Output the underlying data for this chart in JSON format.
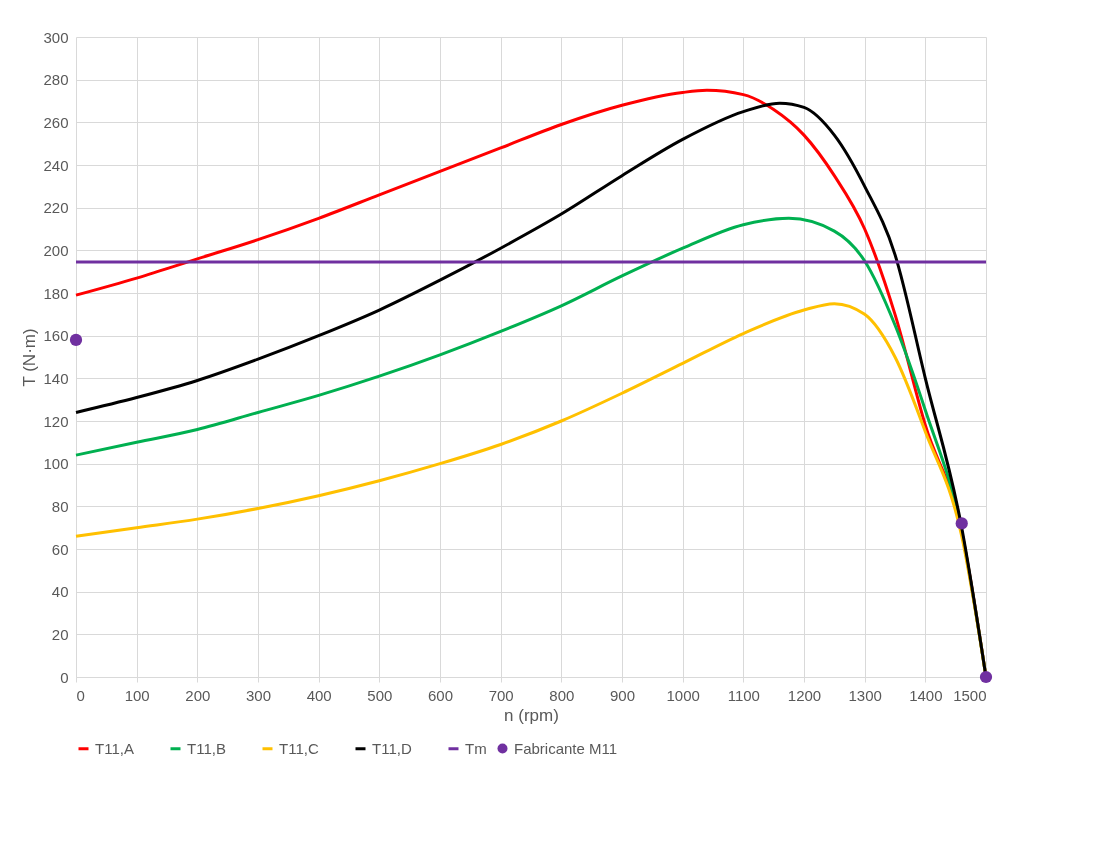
{
  "chart_data": {
    "type": "line",
    "xlabel": "n (rpm)",
    "ylabel": "T (N·m)",
    "xlim": [
      0,
      1500
    ],
    "xticks": [
      0,
      100,
      200,
      300,
      400,
      500,
      600,
      700,
      800,
      900,
      1000,
      1100,
      1200,
      1300,
      1400,
      1500
    ],
    "ylim": [
      0,
      300
    ],
    "yticks": [
      0,
      20,
      40,
      60,
      80,
      100,
      120,
      140,
      160,
      180,
      200,
      220,
      240,
      260,
      280,
      300
    ],
    "grid": true,
    "legend": "bottom",
    "line_style": "solid",
    "series": [
      {
        "name": "T11,A",
        "color": "#ff0000",
        "x": [
          0,
          100,
          200,
          300,
          400,
          500,
          600,
          700,
          800,
          900,
          1000,
          1040,
          1100,
          1150,
          1200,
          1250,
          1300,
          1350,
          1400,
          1460,
          1500
        ],
        "values": [
          179,
          187,
          196,
          205,
          215,
          226,
          237,
          248,
          259,
          268,
          274,
          275,
          273,
          266,
          254,
          235,
          210,
          170,
          118,
          68,
          0
        ]
      },
      {
        "name": "T11,B",
        "color": "#00b050",
        "x": [
          0,
          100,
          200,
          300,
          400,
          500,
          600,
          700,
          800,
          900,
          1000,
          1100,
          1175,
          1250,
          1300,
          1350,
          1400,
          1460,
          1500
        ],
        "values": [
          104,
          110,
          116,
          124,
          132,
          141,
          151,
          162,
          174,
          188,
          201,
          212,
          215,
          209,
          195,
          165,
          125,
          68,
          0
        ]
      },
      {
        "name": "T11,C",
        "color": "#ffc000",
        "x": [
          0,
          100,
          200,
          300,
          400,
          500,
          600,
          700,
          800,
          900,
          1000,
          1100,
          1200,
          1250,
          1300,
          1350,
          1400,
          1460,
          1500
        ],
        "values": [
          66,
          70,
          74,
          79,
          85,
          92,
          100,
          109,
          120,
          133,
          147,
          161,
          172,
          175,
          170,
          150,
          115,
          66,
          0
        ]
      },
      {
        "name": "T11,D",
        "color": "#000000",
        "x": [
          0,
          100,
          200,
          300,
          400,
          500,
          600,
          700,
          800,
          900,
          1000,
          1100,
          1160,
          1200,
          1250,
          1300,
          1350,
          1400,
          1460,
          1500
        ],
        "values": [
          124,
          131,
          139,
          149,
          160,
          172,
          186,
          201,
          217,
          235,
          252,
          265,
          269,
          267,
          254,
          230,
          198,
          140,
          70,
          0
        ]
      },
      {
        "name": "Tm",
        "color": "#7030a0",
        "x": [
          0,
          1500
        ],
        "values": [
          194.5,
          194.5
        ]
      },
      {
        "name": "Fabricante M11",
        "color": "#7030a0",
        "type": "scatter",
        "marker": "circle",
        "x": [
          0,
          1460,
          1500
        ],
        "values": [
          158,
          72,
          0
        ]
      }
    ]
  }
}
